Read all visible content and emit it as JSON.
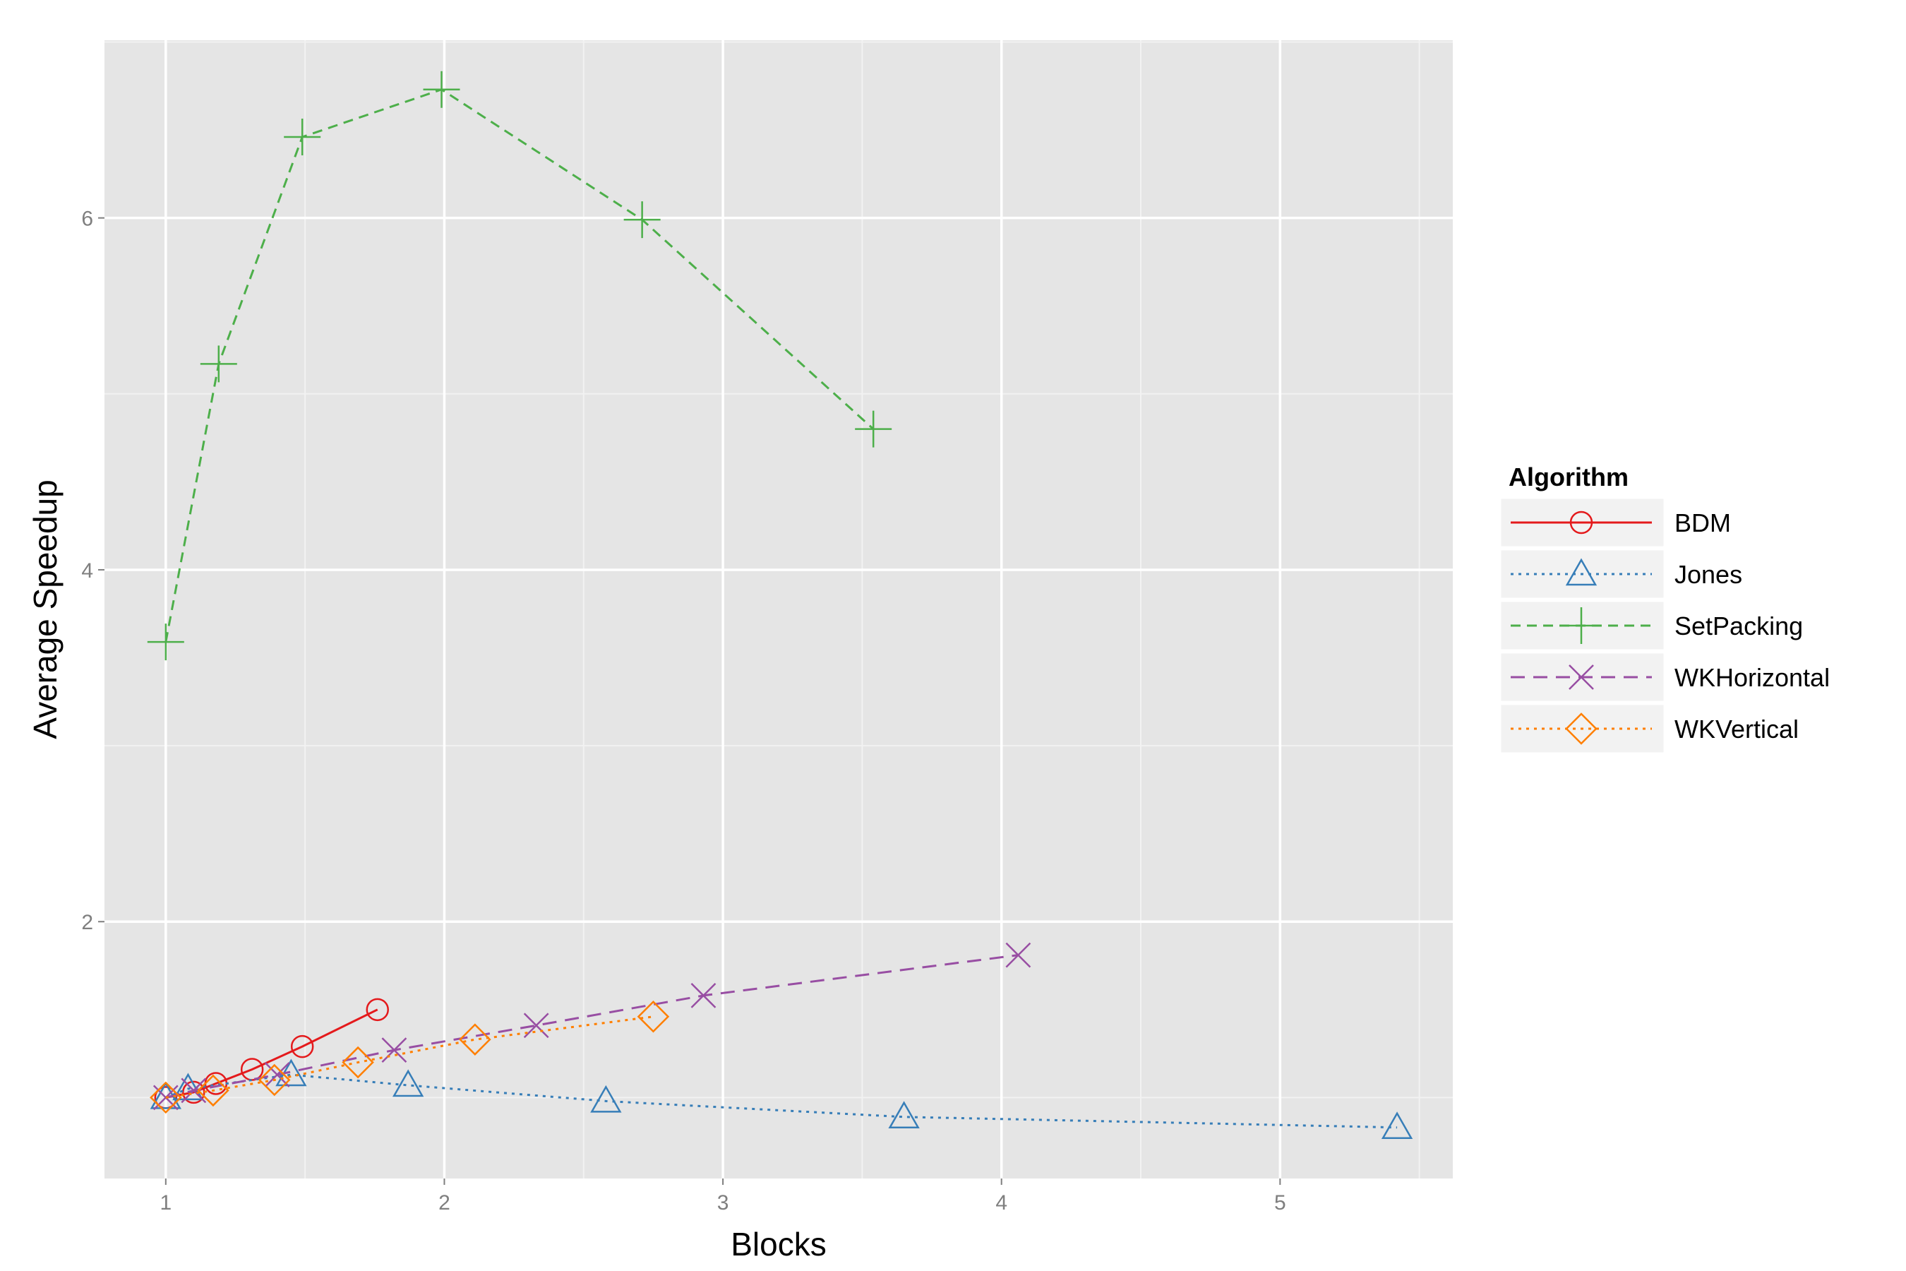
{
  "chart_data": {
    "type": "line",
    "title": "",
    "xlabel": "Blocks",
    "ylabel": "Average Speedup",
    "xlim": [
      0.78,
      5.62
    ],
    "ylim": [
      0.54,
      7.01
    ],
    "x_ticks": [
      1,
      2,
      3,
      4,
      5
    ],
    "y_ticks": [
      2,
      4,
      6
    ],
    "x_tick_labels": [
      "1",
      "2",
      "3",
      "4",
      "5"
    ],
    "y_tick_labels": [
      "2",
      "4",
      "6"
    ],
    "grid": true,
    "legend_title": "Algorithm",
    "legend_position": "right",
    "series": [
      {
        "name": "BDM",
        "color": "#e41a1c",
        "dash": "solid",
        "marker": "circle",
        "x": [
          1.0,
          1.1,
          1.18,
          1.31,
          1.49,
          1.76
        ],
        "y": [
          1.0,
          1.03,
          1.08,
          1.16,
          1.29,
          1.5
        ]
      },
      {
        "name": "Jones",
        "color": "#377eb8",
        "dash": "dotted",
        "marker": "triangle",
        "x": [
          1.0,
          1.08,
          1.45,
          1.87,
          2.58,
          3.65,
          5.42
        ],
        "y": [
          1.0,
          1.05,
          1.13,
          1.07,
          0.98,
          0.89,
          0.83
        ]
      },
      {
        "name": "SetPacking",
        "color": "#4daf4a",
        "dash": "dashed",
        "marker": "plus",
        "x": [
          1.0,
          1.19,
          1.49,
          1.99,
          2.71,
          3.54
        ],
        "y": [
          3.59,
          5.17,
          6.46,
          6.73,
          5.99,
          4.8
        ]
      },
      {
        "name": "WKHorizontal",
        "color": "#984ea3",
        "dash": "longdash",
        "marker": "cross",
        "x": [
          1.0,
          1.1,
          1.4,
          1.82,
          2.33,
          2.93,
          4.06
        ],
        "y": [
          1.0,
          1.04,
          1.13,
          1.27,
          1.41,
          1.58,
          1.81
        ]
      },
      {
        "name": "WKVertical",
        "color": "#ff7f00",
        "dash": "dotted",
        "marker": "diamond",
        "x": [
          1.0,
          1.17,
          1.39,
          1.69,
          2.11,
          2.75
        ],
        "y": [
          1.0,
          1.04,
          1.1,
          1.2,
          1.33,
          1.46
        ]
      }
    ]
  }
}
